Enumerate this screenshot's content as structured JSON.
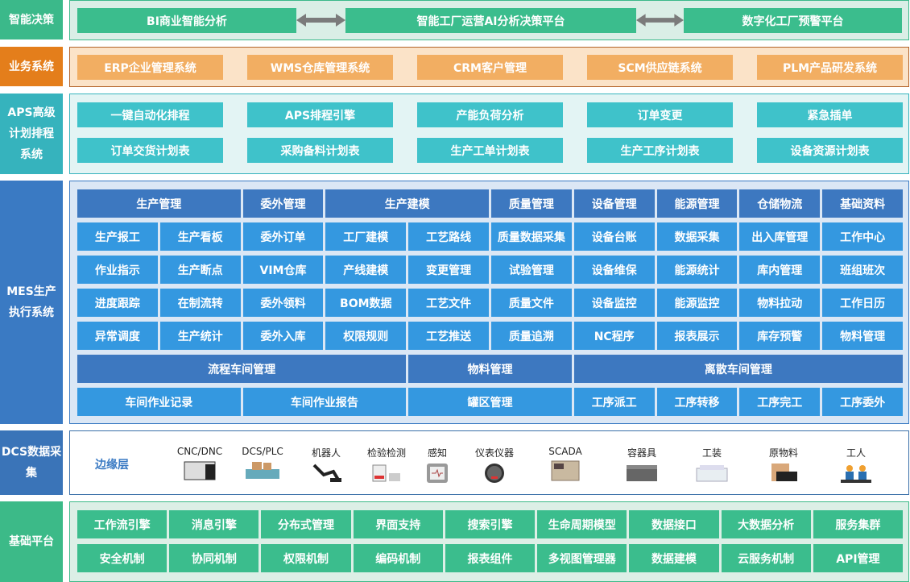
{
  "layers": {
    "decision": {
      "label": "智能决策",
      "items": [
        "BI商业智能分析",
        "智能工厂运营AI分析决策平台",
        "数字化工厂预警平台"
      ]
    },
    "business": {
      "label": "业务系统",
      "items": [
        "ERP企业管理系统",
        "WMS仓库管理系统",
        "CRM客户管理",
        "SCM供应链系统",
        "PLM产品研发系统"
      ]
    },
    "aps": {
      "label": "APS高级计划排程系统",
      "items": [
        "一键自动化排程",
        "APS排程引擎",
        "产能负荷分析",
        "订单变更",
        "紧急插单",
        "订单交货计划表",
        "采购备料计划表",
        "生产工单计划表",
        "生产工序计划表",
        "设备资源计划表"
      ]
    },
    "mes": {
      "label": "MES生产执行系统",
      "cells": [
        {
          "t": "生产管理",
          "s": 2,
          "h": 1
        },
        {
          "t": "委外管理",
          "s": 1,
          "h": 1
        },
        {
          "t": "生产建模",
          "s": 2,
          "h": 1
        },
        {
          "t": "质量管理",
          "s": 1,
          "h": 1
        },
        {
          "t": "设备管理",
          "s": 1,
          "h": 1
        },
        {
          "t": "能源管理",
          "s": 1,
          "h": 1
        },
        {
          "t": "仓储物流",
          "s": 1,
          "h": 1
        },
        {
          "t": "基础资料",
          "s": 1,
          "h": 1
        },
        {
          "t": "生产报工",
          "s": 1
        },
        {
          "t": "生产看板",
          "s": 1
        },
        {
          "t": "委外订单",
          "s": 1
        },
        {
          "t": "工厂建模",
          "s": 1
        },
        {
          "t": "工艺路线",
          "s": 1
        },
        {
          "t": "质量数据采集",
          "s": 1
        },
        {
          "t": "设备台账",
          "s": 1
        },
        {
          "t": "数据采集",
          "s": 1
        },
        {
          "t": "出入库管理",
          "s": 1
        },
        {
          "t": "工作中心",
          "s": 1
        },
        {
          "t": "作业指示",
          "s": 1
        },
        {
          "t": "生产断点",
          "s": 1
        },
        {
          "t": "VIM仓库",
          "s": 1
        },
        {
          "t": "产线建模",
          "s": 1
        },
        {
          "t": "变更管理",
          "s": 1
        },
        {
          "t": "试验管理",
          "s": 1
        },
        {
          "t": "设备维保",
          "s": 1
        },
        {
          "t": "能源统计",
          "s": 1
        },
        {
          "t": "库内管理",
          "s": 1
        },
        {
          "t": "班组班次",
          "s": 1
        },
        {
          "t": "进度跟踪",
          "s": 1
        },
        {
          "t": "在制流转",
          "s": 1
        },
        {
          "t": "委外领料",
          "s": 1
        },
        {
          "t": "BOM数据",
          "s": 1
        },
        {
          "t": "工艺文件",
          "s": 1
        },
        {
          "t": "质量文件",
          "s": 1
        },
        {
          "t": "设备监控",
          "s": 1
        },
        {
          "t": "能源监控",
          "s": 1
        },
        {
          "t": "物料拉动",
          "s": 1
        },
        {
          "t": "工作日历",
          "s": 1
        },
        {
          "t": "异常调度",
          "s": 1
        },
        {
          "t": "生产统计",
          "s": 1
        },
        {
          "t": "委外入库",
          "s": 1
        },
        {
          "t": "权限规则",
          "s": 1
        },
        {
          "t": "工艺推送",
          "s": 1
        },
        {
          "t": "质量追溯",
          "s": 1
        },
        {
          "t": "NC程序",
          "s": 1
        },
        {
          "t": "报表展示",
          "s": 1
        },
        {
          "t": "库存预警",
          "s": 1
        },
        {
          "t": "物料管理",
          "s": 1
        },
        {
          "t": "流程车间管理",
          "s": 4,
          "h": 1
        },
        {
          "t": "物料管理",
          "s": 2,
          "h": 1
        },
        {
          "t": "离散车间管理",
          "s": 4,
          "h": 1
        },
        {
          "t": "车间作业记录",
          "s": 2
        },
        {
          "t": "车间作业报告",
          "s": 2
        },
        {
          "t": "罐区管理",
          "s": 2
        },
        {
          "t": "工序派工",
          "s": 1
        },
        {
          "t": "工序转移",
          "s": 1
        },
        {
          "t": "工序完工",
          "s": 1
        },
        {
          "t": "工序委外",
          "s": 1
        }
      ]
    },
    "dcs": {
      "label": "DCS数据采集",
      "edge_label": "边缘层",
      "devices": [
        "CNC/DNC",
        "DCS/PLC",
        "机器人",
        "检验检测",
        "感知",
        "仪表仪器",
        "SCADA",
        "容器具",
        "工装",
        "原物料",
        "工人"
      ]
    },
    "foundation": {
      "label": "基础平台",
      "items": [
        "工作流引擎",
        "消息引擎",
        "分布式管理",
        "界面支持",
        "搜索引擎",
        "生命周期模型",
        "数据接口",
        "大数据分析",
        "服务集群",
        "安全机制",
        "协同机制",
        "权限机制",
        "编码机制",
        "报表组件",
        "多视图管理器",
        "数据建模",
        "云服务机制",
        "API管理"
      ]
    }
  },
  "colors": {
    "green": "#3bbd8d",
    "orange": "#e67e22",
    "orange_item": "#f2ae62",
    "teal": "#3fc2ca",
    "mes_header": "#3d78c0",
    "mes_item": "#3498e0",
    "dcs": "#3a74b8"
  }
}
